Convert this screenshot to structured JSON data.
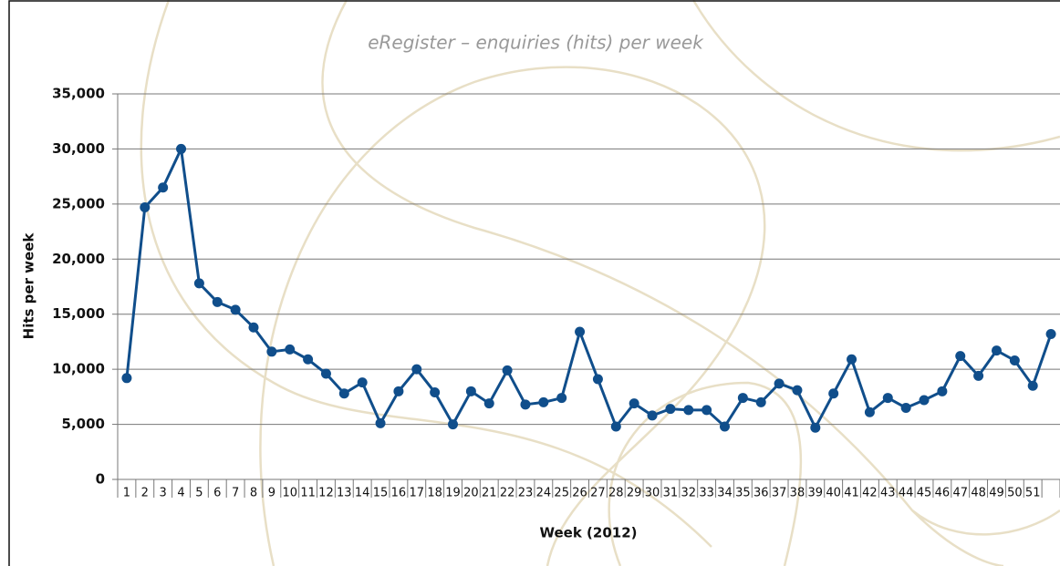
{
  "chart_data": {
    "type": "line",
    "title": "eRegister – enquiries (hits) per week",
    "x_label": "Week (2012)",
    "y_label": "Hits per week",
    "categories": [
      "1",
      "2",
      "3",
      "4",
      "5",
      "6",
      "7",
      "8",
      "9",
      "10",
      "11",
      "12",
      "13",
      "14",
      "15",
      "16",
      "17",
      "18",
      "19",
      "20",
      "21",
      "22",
      "23",
      "24",
      "25",
      "26",
      "27",
      "28",
      "29",
      "30",
      "31",
      "32",
      "33",
      "34",
      "35",
      "36",
      "37",
      "38",
      "39",
      "40",
      "41",
      "42",
      "43",
      "44",
      "45",
      "46",
      "47",
      "48",
      "49",
      "50",
      "51",
      null
    ],
    "series": [
      {
        "name": "Hits per week",
        "color": "#104e8b",
        "values": [
          9200,
          24700,
          26500,
          30000,
          17800,
          16100,
          15400,
          13800,
          11600,
          11800,
          10900,
          9600,
          7800,
          8800,
          5100,
          8000,
          10000,
          7900,
          5000,
          8000,
          6900,
          9900,
          6800,
          7000,
          7400,
          13400,
          9100,
          4800,
          6900,
          5800,
          6400,
          6300,
          6300,
          4800,
          7400,
          7000,
          8700,
          8100,
          4700,
          7800,
          10900,
          6100,
          7400,
          6500,
          7200,
          8000,
          11200,
          9400,
          11700,
          10800,
          8500,
          13200
        ]
      }
    ],
    "ylim": [
      0,
      35000
    ],
    "yticks": [
      0,
      {
        "value": 5000,
        "label": "5,000"
      },
      {
        "value": 10000,
        "label": "10,000"
      },
      {
        "value": 15000,
        "label": "15,000"
      },
      {
        "value": 20000,
        "label": "20,000"
      },
      {
        "value": 25000,
        "label": "25,000"
      },
      {
        "value": 30000,
        "label": "30,000"
      },
      {
        "value": 35000,
        "label": "35,000"
      }
    ],
    "grid": true
  }
}
